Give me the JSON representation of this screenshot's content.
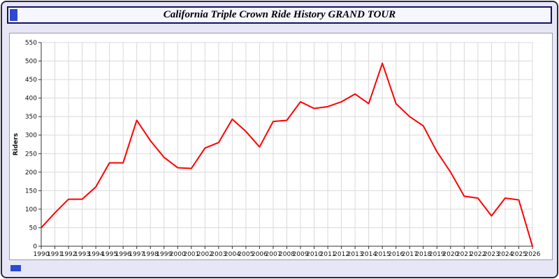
{
  "header": {
    "title": "California Triple Crown Ride History GRAND TOUR"
  },
  "icons": {
    "window_icon": "blue-square",
    "bottom_marker": "blue-square"
  },
  "colors": {
    "page_bg": "#e6e6f6",
    "frame_border": "#2b2b3e",
    "titlebar_bg": "#f6f6ff",
    "titlebar_border": "#12125e",
    "panel_bg": "#ffffff",
    "grid": "#d9d9d9",
    "axis": "#333333",
    "line": "#ff0000",
    "marker_blue": "#2d49d2"
  },
  "chart_data": {
    "type": "line",
    "title": "California Triple Crown Ride History GRAND TOUR",
    "xlabel": "",
    "ylabel": "Riders",
    "ylim": [
      0,
      550
    ],
    "ytick_step": 50,
    "grid": true,
    "legend": "none",
    "line_color": "#ff0000",
    "x": [
      1990,
      1991,
      1992,
      1993,
      1994,
      1995,
      1996,
      1997,
      1998,
      1999,
      2000,
      2001,
      2002,
      2003,
      2004,
      2005,
      2006,
      2007,
      2008,
      2009,
      2010,
      2011,
      2012,
      2013,
      2014,
      2015,
      2016,
      2017,
      2018,
      2019,
      2020,
      2021,
      2022,
      2023,
      2024,
      2025,
      2026
    ],
    "values": [
      50,
      90,
      127,
      127,
      160,
      225,
      225,
      340,
      285,
      240,
      212,
      210,
      265,
      280,
      343,
      310,
      268,
      337,
      340,
      390,
      372,
      377,
      390,
      411,
      385,
      494,
      385,
      350,
      325,
      255,
      200,
      135,
      130,
      82,
      130,
      125,
      0
    ]
  }
}
